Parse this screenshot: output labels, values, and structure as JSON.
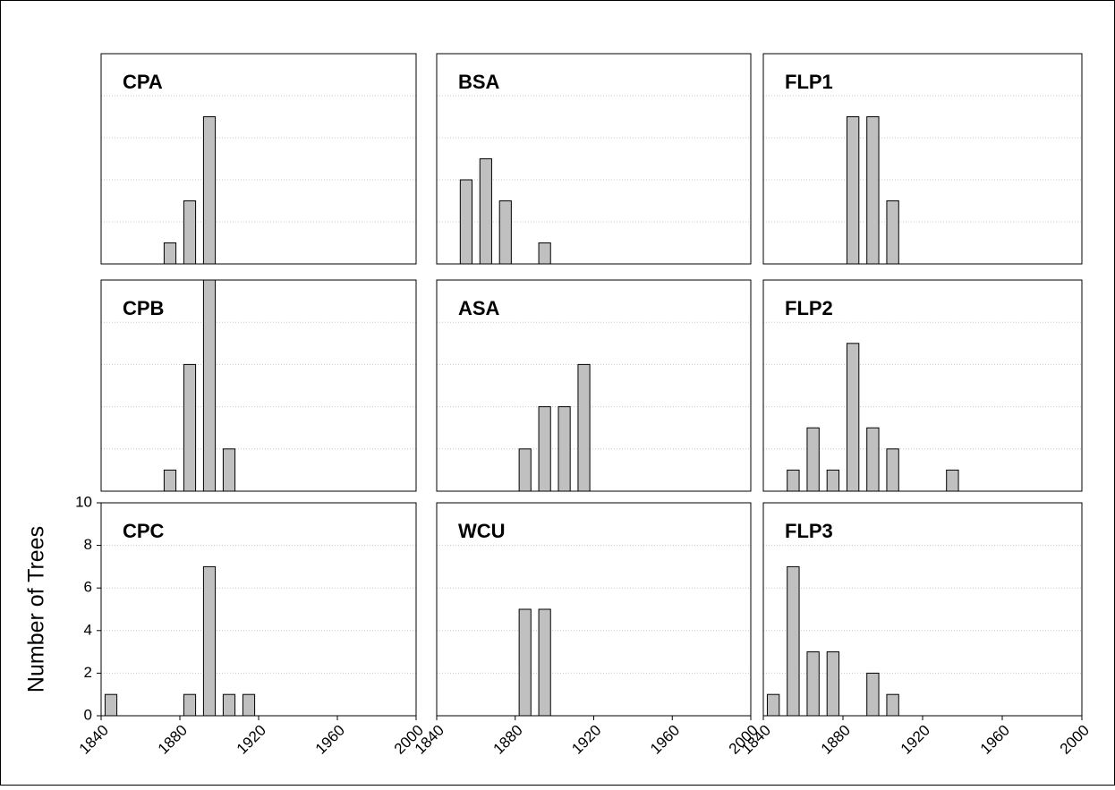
{
  "chart_data": [
    {
      "type": "bar",
      "title": "CPA",
      "x": [
        1875,
        1885,
        1895
      ],
      "values": [
        1,
        3,
        7
      ],
      "color": "#c0c0c0",
      "xlim": [
        1840,
        2000
      ],
      "ylim": [
        0,
        10
      ],
      "yticks": [
        0,
        2,
        4,
        6,
        8,
        10
      ],
      "ytick_labels": false,
      "grid": true
    },
    {
      "type": "bar",
      "title": "BSA",
      "x": [
        1855,
        1865,
        1875,
        1895
      ],
      "values": [
        4,
        5,
        3,
        1
      ],
      "color": "#c0c0c0",
      "xlim": [
        1840,
        2000
      ],
      "ylim": [
        0,
        10
      ],
      "yticks": [
        0,
        2,
        4,
        6,
        8,
        10
      ],
      "ytick_labels": false,
      "grid": true
    },
    {
      "type": "bar",
      "title": "FLP1",
      "x": [
        1885,
        1895,
        1905
      ],
      "values": [
        7,
        7,
        3
      ],
      "color": "#c0c0c0",
      "xlim": [
        1840,
        2000
      ],
      "ylim": [
        0,
        10
      ],
      "yticks": [
        0,
        2,
        4,
        6,
        8,
        10
      ],
      "ytick_labels": false,
      "grid": true
    },
    {
      "type": "bar",
      "title": "CPB",
      "x": [
        1875,
        1885,
        1895,
        1905
      ],
      "values": [
        1,
        6,
        10,
        2
      ],
      "color": "#c0c0c0",
      "xlim": [
        1840,
        2000
      ],
      "ylim": [
        0,
        10
      ],
      "yticks": [
        0,
        2,
        4,
        6,
        8,
        10
      ],
      "ytick_labels": false,
      "grid": true
    },
    {
      "type": "bar",
      "title": "ASA",
      "x": [
        1885,
        1895,
        1905,
        1915
      ],
      "values": [
        2,
        4,
        4,
        6
      ],
      "color": "#c0c0c0",
      "xlim": [
        1840,
        2000
      ],
      "ylim": [
        0,
        10
      ],
      "yticks": [
        0,
        2,
        4,
        6,
        8,
        10
      ],
      "ytick_labels": false,
      "grid": true
    },
    {
      "type": "bar",
      "title": "FLP2",
      "x": [
        1855,
        1865,
        1875,
        1885,
        1895,
        1905,
        1935
      ],
      "values": [
        1,
        3,
        1,
        7,
        3,
        2,
        1
      ],
      "color": "#c0c0c0",
      "xlim": [
        1840,
        2000
      ],
      "ylim": [
        0,
        10
      ],
      "yticks": [
        0,
        2,
        4,
        6,
        8,
        10
      ],
      "ytick_labels": false,
      "grid": true
    },
    {
      "type": "bar",
      "title": "CPC",
      "y_label": "Number of Trees",
      "x": [
        1845,
        1885,
        1895,
        1905,
        1915
      ],
      "values": [
        1,
        1,
        7,
        1,
        1
      ],
      "color": "#c0c0c0",
      "xlim": [
        1840,
        2000
      ],
      "ylim": [
        0,
        10
      ],
      "xticks": [
        1840,
        1880,
        1920,
        1960,
        2000
      ],
      "yticks": [
        0,
        2,
        4,
        6,
        8,
        10
      ],
      "ytick_labels": true,
      "grid": true
    },
    {
      "type": "bar",
      "title": "WCU",
      "x": [
        1885,
        1895
      ],
      "values": [
        5,
        5
      ],
      "color": "#c0c0c0",
      "xlim": [
        1840,
        2000
      ],
      "ylim": [
        0,
        10
      ],
      "xticks": [
        1840,
        1880,
        1920,
        1960,
        2000
      ],
      "yticks": [
        0,
        2,
        4,
        6,
        8,
        10
      ],
      "ytick_labels": false,
      "grid": true
    },
    {
      "type": "bar",
      "title": "FLP3",
      "x": [
        1845,
        1855,
        1865,
        1875,
        1895,
        1905
      ],
      "values": [
        1,
        7,
        3,
        3,
        2,
        1
      ],
      "color": "#c0c0c0",
      "xlim": [
        1840,
        2000
      ],
      "ylim": [
        0,
        10
      ],
      "xticks": [
        1840,
        1880,
        1920,
        1960,
        2000
      ],
      "yticks": [
        0,
        2,
        4,
        6,
        8,
        10
      ],
      "ytick_labels": false,
      "grid": true
    }
  ]
}
